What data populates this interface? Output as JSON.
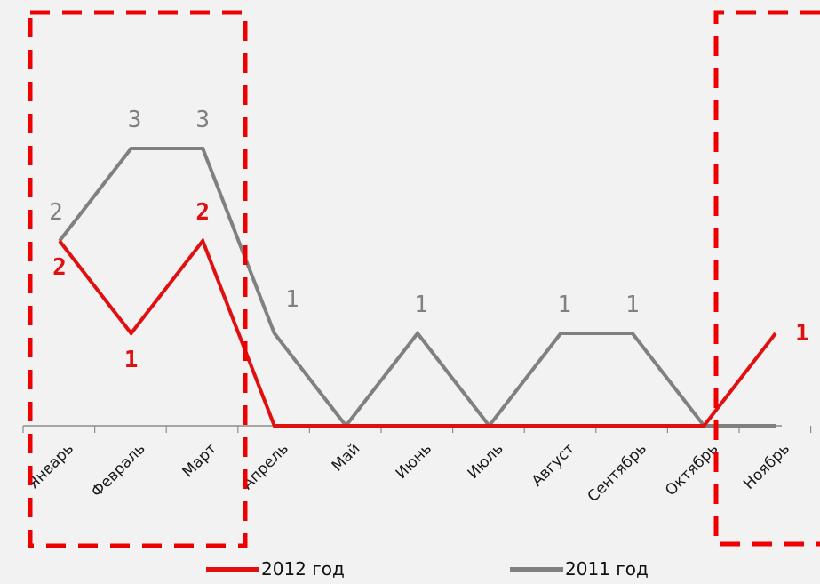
{
  "chart_data": {
    "type": "line",
    "categories": [
      "Январь",
      "Февраль",
      "Март",
      "Апрель",
      "Май",
      "Июнь",
      "Июль",
      "Август",
      "Сентябрь",
      "Октябрь",
      "Ноябрь"
    ],
    "series": [
      {
        "name": "2012 год",
        "color": "#e01010",
        "values": [
          2,
          1,
          2,
          0,
          0,
          0,
          0,
          0,
          0,
          0,
          1
        ],
        "data_labels": [
          "2",
          "1",
          "2",
          null,
          null,
          null,
          null,
          null,
          null,
          null,
          "1"
        ]
      },
      {
        "name": "2011 год",
        "color": "#808080",
        "values": [
          2,
          3,
          3,
          1,
          0,
          1,
          0,
          1,
          1,
          0,
          0
        ],
        "data_labels": [
          "2",
          "3",
          "3",
          "1",
          null,
          "1",
          null,
          "1",
          "1",
          null,
          null
        ]
      }
    ],
    "ylim": [
      0,
      4
    ],
    "grid": false,
    "legend_position": "bottom",
    "highlight_boxes_color": "#ee0000"
  }
}
